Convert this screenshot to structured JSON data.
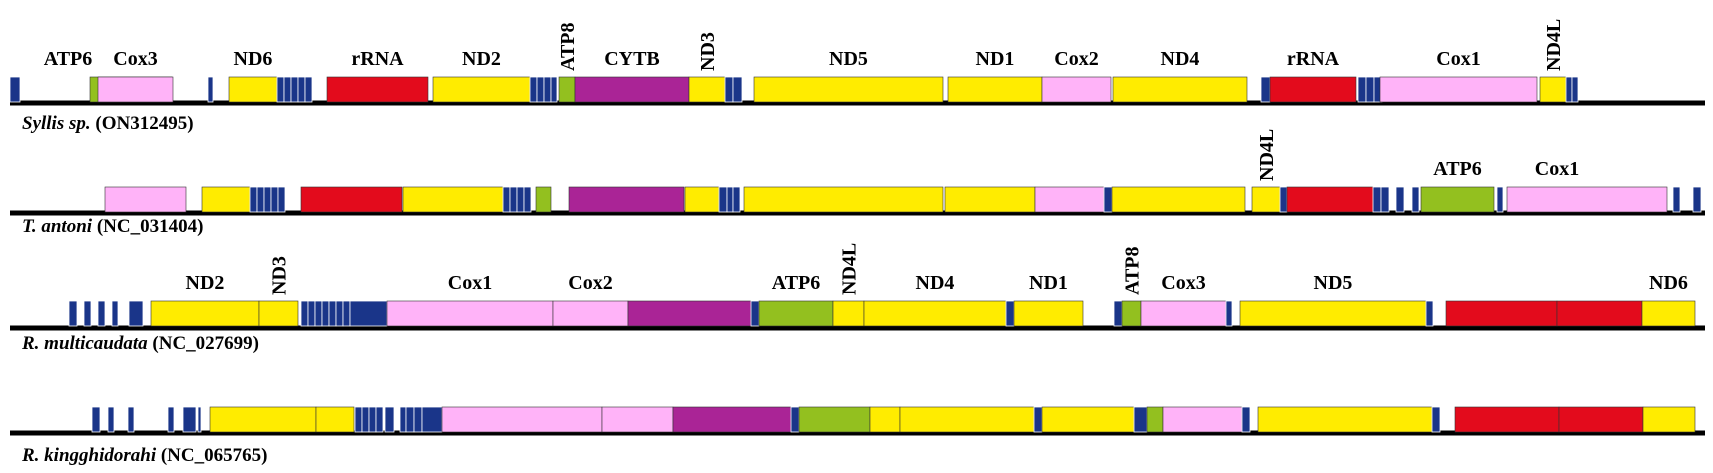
{
  "colors": {
    "protein": "#ffec00",
    "rrna": "#e30b1c",
    "cox": "#ffb3f8",
    "atp": "#93c01f",
    "cytb": "#aa2496",
    "trna": "#1a3589",
    "line": "#000000"
  },
  "genomes": [
    {
      "name": "Syllis sp.",
      "accession": "(ON312495)",
      "genes": [
        {
          "kind": "trna"
        },
        {
          "kind": "atp",
          "label": "ATP6"
        },
        {
          "kind": "cox",
          "label": "Cox3"
        },
        {
          "kind": "trna"
        },
        {
          "kind": "protein",
          "label": "ND6"
        },
        {
          "kind": "trna"
        },
        {
          "kind": "trna"
        },
        {
          "kind": "trna"
        },
        {
          "kind": "trna"
        },
        {
          "kind": "trna"
        },
        {
          "kind": "rrna",
          "label": "rRNA"
        },
        {
          "kind": "protein",
          "label": "ND2"
        },
        {
          "kind": "trna"
        },
        {
          "kind": "trna"
        },
        {
          "kind": "trna"
        },
        {
          "kind": "trna"
        },
        {
          "kind": "atp",
          "label": "ATP8"
        },
        {
          "kind": "cytb",
          "label": "CYTB"
        },
        {
          "kind": "protein",
          "label": "ND3"
        },
        {
          "kind": "trna"
        },
        {
          "kind": "trna"
        },
        {
          "kind": "protein",
          "label": "ND5"
        },
        {
          "kind": "protein",
          "label": "ND1"
        },
        {
          "kind": "cox",
          "label": "Cox2"
        },
        {
          "kind": "protein",
          "label": "ND4"
        },
        {
          "kind": "trna"
        },
        {
          "kind": "rrna",
          "label": "rRNA"
        },
        {
          "kind": "trna"
        },
        {
          "kind": "trna"
        },
        {
          "kind": "trna"
        },
        {
          "kind": "cox",
          "label": "Cox1"
        },
        {
          "kind": "protein",
          "label": "ND4L"
        },
        {
          "kind": "trna"
        },
        {
          "kind": "trna"
        }
      ]
    },
    {
      "name": "T. antoni",
      "accession": "(NC_031404)",
      "genes": [
        {
          "kind": "cox"
        },
        {
          "kind": "protein"
        },
        {
          "kind": "trna"
        },
        {
          "kind": "trna"
        },
        {
          "kind": "trna"
        },
        {
          "kind": "trna"
        },
        {
          "kind": "trna"
        },
        {
          "kind": "rrna"
        },
        {
          "kind": "protein"
        },
        {
          "kind": "trna"
        },
        {
          "kind": "trna"
        },
        {
          "kind": "trna"
        },
        {
          "kind": "trna"
        },
        {
          "kind": "atp"
        },
        {
          "kind": "cytb"
        },
        {
          "kind": "protein"
        },
        {
          "kind": "trna"
        },
        {
          "kind": "trna"
        },
        {
          "kind": "trna"
        },
        {
          "kind": "protein"
        },
        {
          "kind": "protein"
        },
        {
          "kind": "cox"
        },
        {
          "kind": "trna"
        },
        {
          "kind": "protein"
        },
        {
          "kind": "protein",
          "label": "ND4L"
        },
        {
          "kind": "trna"
        },
        {
          "kind": "rrna"
        },
        {
          "kind": "trna"
        },
        {
          "kind": "trna"
        },
        {
          "kind": "trna"
        },
        {
          "kind": "trna"
        },
        {
          "kind": "atp",
          "label": "ATP6"
        },
        {
          "kind": "trna"
        },
        {
          "kind": "cox",
          "label": "Cox1"
        },
        {
          "kind": "trna"
        },
        {
          "kind": "trna"
        }
      ]
    },
    {
      "name": "R. multicaudata",
      "accession": "(NC_027699)",
      "genes": [
        {
          "kind": "trna"
        },
        {
          "kind": "trna"
        },
        {
          "kind": "trna"
        },
        {
          "kind": "trna"
        },
        {
          "kind": "trna"
        },
        {
          "kind": "protein",
          "label": "ND2"
        },
        {
          "kind": "protein",
          "label": "ND3"
        },
        {
          "kind": "trna"
        },
        {
          "kind": "trna"
        },
        {
          "kind": "trna"
        },
        {
          "kind": "trna"
        },
        {
          "kind": "trna"
        },
        {
          "kind": "trna"
        },
        {
          "kind": "trna"
        },
        {
          "kind": "trna"
        },
        {
          "kind": "cox",
          "label": "Cox1"
        },
        {
          "kind": "cox",
          "label": "Cox2"
        },
        {
          "kind": "cytb"
        },
        {
          "kind": "trna"
        },
        {
          "kind": "atp",
          "label": "ATP6"
        },
        {
          "kind": "protein",
          "label": "ND4L"
        },
        {
          "kind": "protein",
          "label": "ND4"
        },
        {
          "kind": "trna"
        },
        {
          "kind": "protein",
          "label": "ND1"
        },
        {
          "kind": "trna"
        },
        {
          "kind": "atp",
          "label": "ATP8"
        },
        {
          "kind": "cox",
          "label": "Cox3"
        },
        {
          "kind": "trna"
        },
        {
          "kind": "protein",
          "label": "ND5"
        },
        {
          "kind": "trna"
        },
        {
          "kind": "rrna"
        },
        {
          "kind": "rrna"
        },
        {
          "kind": "protein",
          "label": "ND6"
        }
      ]
    },
    {
      "name": "R. kingghidorahi",
      "accession": "(NC_065765)",
      "genes": [
        {
          "kind": "trna"
        },
        {
          "kind": "trna"
        },
        {
          "kind": "trna"
        },
        {
          "kind": "trna"
        },
        {
          "kind": "trna"
        },
        {
          "kind": "trna"
        },
        {
          "kind": "protein"
        },
        {
          "kind": "protein"
        },
        {
          "kind": "trna"
        },
        {
          "kind": "trna"
        },
        {
          "kind": "trna"
        },
        {
          "kind": "trna"
        },
        {
          "kind": "trna"
        },
        {
          "kind": "trna"
        },
        {
          "kind": "trna"
        },
        {
          "kind": "trna"
        },
        {
          "kind": "trna"
        },
        {
          "kind": "cox"
        },
        {
          "kind": "cox"
        },
        {
          "kind": "cytb"
        },
        {
          "kind": "trna"
        },
        {
          "kind": "atp"
        },
        {
          "kind": "protein"
        },
        {
          "kind": "protein"
        },
        {
          "kind": "trna"
        },
        {
          "kind": "protein"
        },
        {
          "kind": "trna"
        },
        {
          "kind": "atp"
        },
        {
          "kind": "cox"
        },
        {
          "kind": "trna"
        },
        {
          "kind": "protein"
        },
        {
          "kind": "trna"
        },
        {
          "kind": "rrna"
        },
        {
          "kind": "rrna"
        },
        {
          "kind": "protein"
        }
      ]
    }
  ]
}
